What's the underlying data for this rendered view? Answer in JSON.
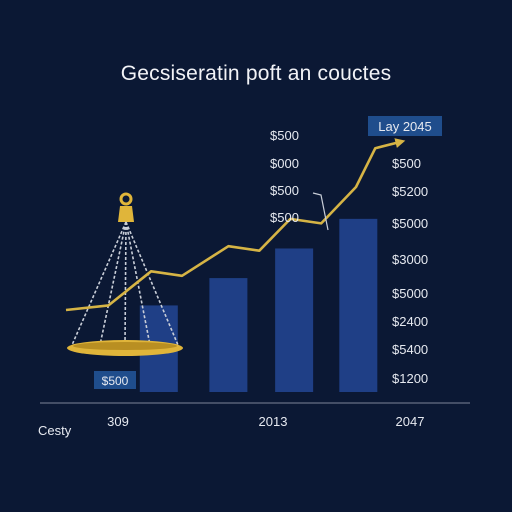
{
  "title": "Gecsiseratin poft an couctes",
  "colors": {
    "background": "#0b1834",
    "bars": "#1f3f86",
    "line": "#d6b445",
    "scale": "#e0b53a",
    "chain": "#c9ced8",
    "badge": "#1f4d8c"
  },
  "chart_data": {
    "type": "bar",
    "x_ticks": [
      "Cesty",
      "309",
      "2013",
      "2047"
    ],
    "left_labels": [
      "$500",
      "$000",
      "$500",
      "$500"
    ],
    "right_labels": [
      "$500",
      "$5200",
      "$5000",
      "$3000",
      "$5000",
      "$2400",
      "$5400",
      "$1200"
    ],
    "badge_label": "Lay 2045",
    "scale_label": "$500",
    "bars": [
      {
        "value": 38
      },
      {
        "value": 50
      },
      {
        "value": 63
      },
      {
        "value": 76
      }
    ],
    "trend": [
      {
        "x": 0.0,
        "y": 36
      },
      {
        "x": 0.55,
        "y": 38
      },
      {
        "x": 1.1,
        "y": 53
      },
      {
        "x": 1.5,
        "y": 51
      },
      {
        "x": 2.1,
        "y": 64
      },
      {
        "x": 2.5,
        "y": 62
      },
      {
        "x": 2.9,
        "y": 76
      },
      {
        "x": 3.3,
        "y": 74
      },
      {
        "x": 3.75,
        "y": 90
      },
      {
        "x": 4.0,
        "y": 107
      },
      {
        "x": 4.35,
        "y": 110
      }
    ],
    "ylim": [
      0,
      115
    ],
    "xlim": [
      0,
      4.5
    ]
  }
}
